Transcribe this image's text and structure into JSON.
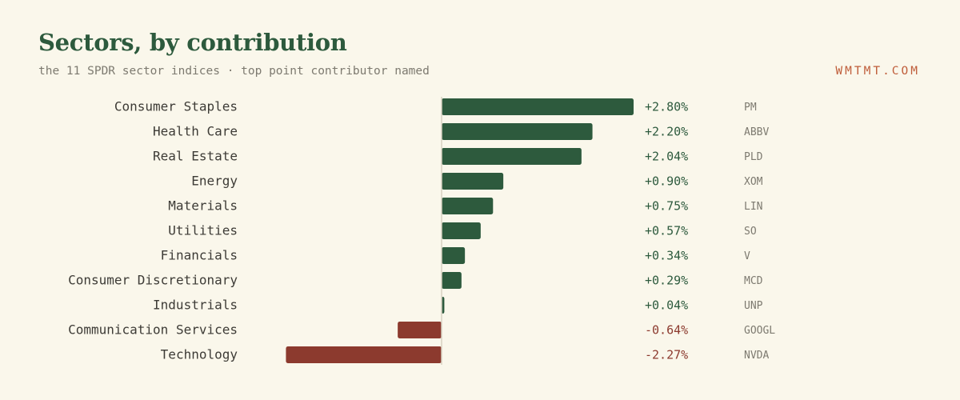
{
  "header": {
    "title": "Sectors, by contribution",
    "subtitle": "the 11 SPDR sector indices · top point contributor named",
    "brand": "WMTMT.COM"
  },
  "colors": {
    "positive": "#2d5a3d",
    "negative": "#8c3a2e",
    "label": "#3d3b36",
    "ticker": "#7d7a70",
    "axis": "#d8d2c2"
  },
  "chart_data": {
    "type": "bar",
    "orientation": "horizontal",
    "title": "Sectors, by contribution",
    "subtitle": "the 11 SPDR sector indices · top point contributor named",
    "categories": [
      "Consumer Staples",
      "Health Care",
      "Real Estate",
      "Energy",
      "Materials",
      "Utilities",
      "Financials",
      "Consumer Discretionary",
      "Industrials",
      "Communication Services",
      "Technology"
    ],
    "values": [
      2.8,
      2.2,
      2.04,
      0.9,
      0.75,
      0.57,
      0.34,
      0.29,
      0.04,
      -0.64,
      -2.27
    ],
    "value_labels": [
      "+2.80%",
      "+2.20%",
      "+2.04%",
      "+0.90%",
      "+0.75%",
      "+0.57%",
      "+0.34%",
      "+0.29%",
      "+0.04%",
      "-0.64%",
      "-2.27%"
    ],
    "contributors": [
      "PM",
      "ABBV",
      "PLD",
      "XOM",
      "LIN",
      "SO",
      "V",
      "MCD",
      "UNP",
      "GOOGL",
      "NVDA"
    ],
    "unit": "%",
    "xlim": [
      -2.27,
      2.8
    ],
    "grid": false,
    "legend": "none"
  }
}
